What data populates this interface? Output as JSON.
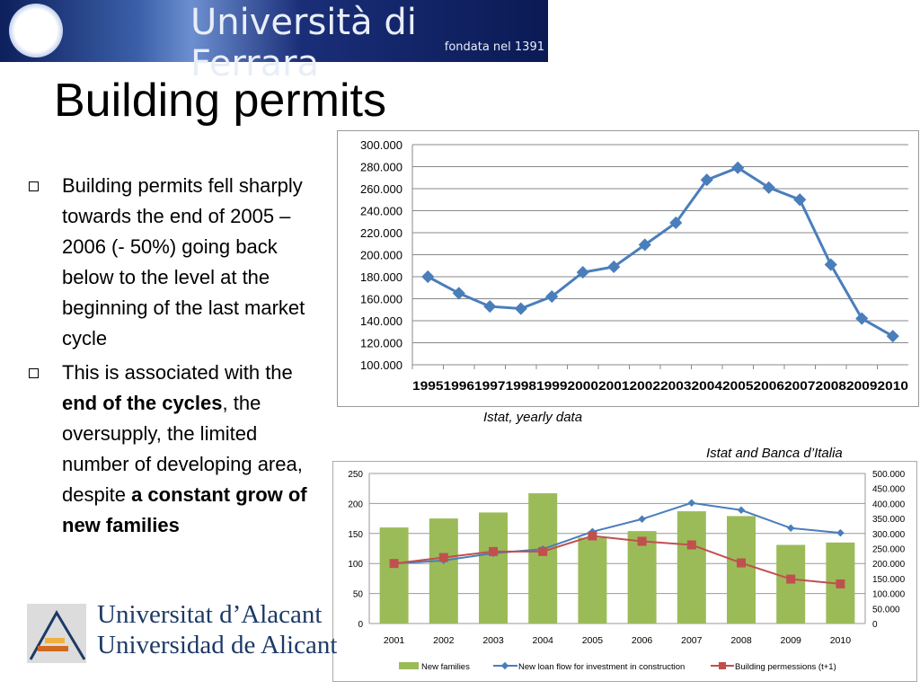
{
  "header": {
    "logo_text": "Università di Ferrara",
    "logo_subtext": "fondata nel 1391"
  },
  "slide": {
    "title": "Building permits"
  },
  "bullets": [
    {
      "parts": [
        {
          "text": "Building permits fell sharply towards the end of 2005 – 2006 (- 50%) going back below to the level at the beginning of the last market cycle",
          "bold": false
        }
      ]
    },
    {
      "parts": [
        {
          "text": "This is associated with the ",
          "bold": false
        },
        {
          "text": "end of the cycles",
          "bold": true
        },
        {
          "text": ", the oversupply, the limited number of developing area, despite ",
          "bold": false
        },
        {
          "text": "a constant grow of new families",
          "bold": true
        }
      ]
    }
  ],
  "captions": {
    "chart1": "Istat, yearly data",
    "chart2": "Istat and Banca d’Italia"
  },
  "footer_logo": {
    "line1": "Universitat d’Alacant",
    "line2": "Universidad de Alicante"
  },
  "chart_data": [
    {
      "type": "line",
      "title": "",
      "xlabel": "",
      "ylabel": "",
      "categories": [
        "1995",
        "1996",
        "1997",
        "1998",
        "1999",
        "2000",
        "2001",
        "2002",
        "2003",
        "2004",
        "2005",
        "2006",
        "2007",
        "2008",
        "2009",
        "2010"
      ],
      "series": [
        {
          "values": [
            180000,
            165000,
            153000,
            151000,
            162000,
            184000,
            189000,
            209000,
            229000,
            268000,
            279000,
            261000,
            250000,
            191000,
            142000,
            126000
          ],
          "color": "#4a7ebb"
        }
      ],
      "ylim": [
        100000,
        300000
      ],
      "yticks": [
        "100.000",
        "120.000",
        "140.000",
        "160.000",
        "180.000",
        "200.000",
        "220.000",
        "240.000",
        "260.000",
        "280.000",
        "300.000"
      ],
      "grid": true,
      "legend": "none"
    },
    {
      "type": "bar+line",
      "title": "",
      "categories": [
        "2001",
        "2002",
        "2003",
        "2004",
        "2005",
        "2006",
        "2007",
        "2008",
        "2009",
        "2010"
      ],
      "series": [
        {
          "name": "New families",
          "type": "bar",
          "axis": "left",
          "color": "#9bbb59",
          "values": [
            160,
            175,
            185,
            217,
            143,
            154,
            187,
            179,
            131,
            135
          ]
        },
        {
          "name": "New loan flow for investment in construction",
          "type": "line",
          "axis": "right",
          "color": "#4a7ebb",
          "values": [
            200000,
            210000,
            234000,
            248000,
            306000,
            348000,
            402000,
            378000,
            318000,
            302000
          ]
        },
        {
          "name": "Building permessions (t+1)",
          "type": "line",
          "axis": "right",
          "color": "#c0504d",
          "values": [
            200000,
            220000,
            240000,
            240000,
            292000,
            274000,
            262000,
            202000,
            148000,
            132000
          ]
        }
      ],
      "ylim_left": [
        0,
        250
      ],
      "yticks_left": [
        "0",
        "50",
        "100",
        "150",
        "200",
        "250"
      ],
      "ylim_right": [
        0,
        500000
      ],
      "yticks_right": [
        "0",
        "50.000",
        "100.000",
        "150.000",
        "200.000",
        "250.000",
        "300.000",
        "350.000",
        "400.000",
        "450.000",
        "500.000"
      ],
      "grid": true,
      "legend": "bottom"
    }
  ]
}
